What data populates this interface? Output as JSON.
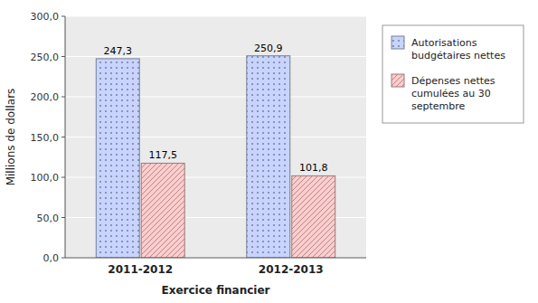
{
  "chart_data": {
    "type": "bar",
    "categories": [
      "2011-2012",
      "2012-2013"
    ],
    "series": [
      {
        "name": "Autorisations\nbudgétaires nettes",
        "color": "#c8d4ff",
        "values": [
          247.3,
          250.9
        ],
        "value_labels": [
          "247,3",
          "250,9"
        ]
      },
      {
        "name": "Dépenses nettes\ncumulées au 30\nseptembre",
        "color": "#ffcccc",
        "values": [
          117.5,
          101.8
        ],
        "value_labels": [
          "117,5",
          "101,8"
        ]
      }
    ],
    "xlabel": "Exercice financier",
    "ylabel": "Millions de dollars",
    "ylim": [
      0,
      300
    ],
    "yticks": [
      {
        "value": 0,
        "label": "0,0"
      },
      {
        "value": 50.0,
        "label": "50,0"
      },
      {
        "value": 100.0,
        "label": "100,0"
      },
      {
        "value": 150.0,
        "label": "150,0"
      },
      {
        "value": 200.0,
        "label": "200,0"
      },
      {
        "value": 250.0,
        "label": "250,0"
      },
      {
        "value": 300.0,
        "label": "300,0"
      }
    ],
    "grid": true,
    "data_labels": true,
    "legend": "right"
  }
}
